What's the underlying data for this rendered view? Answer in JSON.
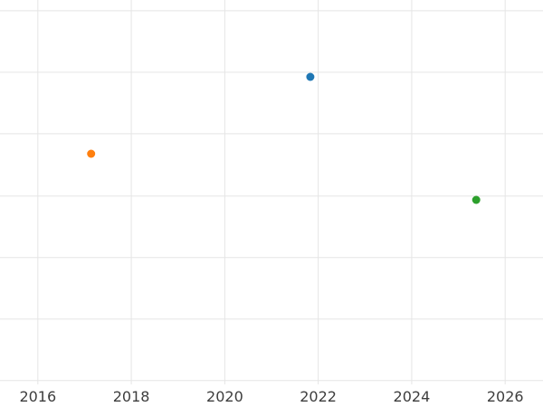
{
  "chart_data": {
    "type": "scatter",
    "title": "",
    "xlabel": "",
    "ylabel": "",
    "x_ticks": [
      2016,
      2018,
      2020,
      2022,
      2024,
      2026
    ],
    "x_tick_labels": [
      "2016",
      "2018",
      "2020",
      "2022",
      "2024",
      "2026"
    ],
    "xlim": [
      2015.19,
      2026.81
    ],
    "y_axis_note": "no y-axis tick labels are visible in the screenshot",
    "grid": true,
    "legend": false,
    "points": [
      {
        "name": "blue-point",
        "color": "#1f77b4",
        "x": 2021.83,
        "y_frac_from_bottom": 0.8
      },
      {
        "name": "orange-point",
        "color": "#ff7f0e",
        "x": 2017.14,
        "y_frac_from_bottom": 0.6
      },
      {
        "name": "green-point",
        "color": "#2ca02c",
        "x": 2025.38,
        "y_frac_from_bottom": 0.48
      }
    ],
    "marker_radius_px": 4.5,
    "gridline_color": "#e5e5e5",
    "tick_label_color": "#3d3d3d",
    "background": "#ffffff",
    "y_gridline_fracs_from_top": [
      0.028,
      0.188,
      0.348,
      0.51,
      0.67,
      0.83,
      0.99
    ]
  }
}
